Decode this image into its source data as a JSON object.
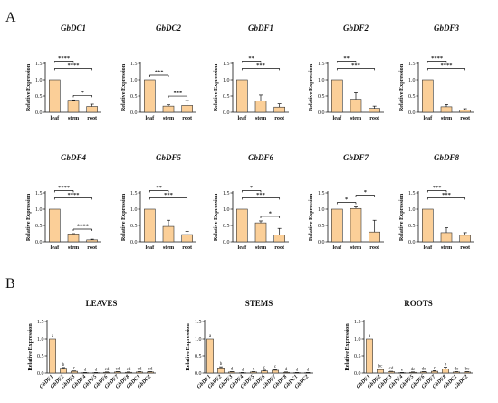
{
  "figure": {
    "panel_A": "A",
    "panel_B": "B"
  },
  "colors": {
    "bar": "#fbcf98",
    "bar_stroke": "#333333",
    "axis": "#111111"
  },
  "chart_data": [
    {
      "type": "bar",
      "title": "GbDC1",
      "ylabel": "Relative Expression",
      "categories": [
        "leaf",
        "stem",
        "root"
      ],
      "values": [
        1.0,
        0.37,
        0.18
      ],
      "errors": [
        0.0,
        0.01,
        0.07
      ],
      "ylim": [
        0,
        1.5
      ],
      "yticks": [
        "0.0",
        "0.5",
        "1.0",
        "1.5"
      ],
      "significance": [
        {
          "from": 0,
          "to": 2,
          "label": "****"
        },
        {
          "from": 0,
          "to": 1,
          "label": "****"
        },
        {
          "from": 1,
          "to": 2,
          "label": "*"
        }
      ]
    },
    {
      "type": "bar",
      "title": "GbDC2",
      "ylabel": "Relative Expression",
      "categories": [
        "leaf",
        "stem",
        "root"
      ],
      "values": [
        1.0,
        0.19,
        0.21
      ],
      "errors": [
        0.0,
        0.04,
        0.15
      ],
      "ylim": [
        0,
        1.5
      ],
      "yticks": [
        "0.0",
        "0.5",
        "1.0",
        "1.5"
      ],
      "significance": [
        {
          "from": 0,
          "to": 1,
          "label": "***"
        },
        {
          "from": 1,
          "to": 2,
          "label": "***"
        }
      ]
    },
    {
      "type": "bar",
      "title": "GbDF1",
      "ylabel": "Relative Expression",
      "categories": [
        "leaf",
        "stem",
        "root"
      ],
      "values": [
        1.0,
        0.35,
        0.16
      ],
      "errors": [
        0.0,
        0.18,
        0.1
      ],
      "ylim": [
        0,
        1.5
      ],
      "yticks": [
        "0.0",
        "0.5",
        "1.0",
        "1.5"
      ],
      "significance": [
        {
          "from": 0,
          "to": 2,
          "label": "***"
        },
        {
          "from": 0,
          "to": 1,
          "label": "**"
        }
      ]
    },
    {
      "type": "bar",
      "title": "GbDF2",
      "ylabel": "Relative Expression",
      "categories": [
        "leaf",
        "stem",
        "root"
      ],
      "values": [
        1.0,
        0.4,
        0.12
      ],
      "errors": [
        0.0,
        0.2,
        0.07
      ],
      "ylim": [
        0,
        1.5
      ],
      "yticks": [
        "0.0",
        "0.5",
        "1.0",
        "1.5"
      ],
      "significance": [
        {
          "from": 0,
          "to": 2,
          "label": "***"
        },
        {
          "from": 0,
          "to": 1,
          "label": "**"
        }
      ]
    },
    {
      "type": "bar",
      "title": "GbDF3",
      "ylabel": "Relative Expression",
      "categories": [
        "leaf",
        "stem",
        "root"
      ],
      "values": [
        1.0,
        0.17,
        0.07
      ],
      "errors": [
        0.0,
        0.07,
        0.04
      ],
      "ylim": [
        0,
        1.5
      ],
      "yticks": [
        "0.0",
        "0.5",
        "1.0",
        "1.5"
      ],
      "significance": [
        {
          "from": 0,
          "to": 2,
          "label": "****"
        },
        {
          "from": 0,
          "to": 1,
          "label": "****"
        }
      ]
    },
    {
      "type": "bar",
      "title": "GbDF4",
      "ylabel": "Relative Expression",
      "categories": [
        "leaf",
        "stem",
        "root"
      ],
      "values": [
        1.0,
        0.24,
        0.06
      ],
      "errors": [
        0.0,
        0.01,
        0.02
      ],
      "ylim": [
        0,
        1.5
      ],
      "yticks": [
        "0.0",
        "0.5",
        "1.0",
        "1.5"
      ],
      "significance": [
        {
          "from": 0,
          "to": 2,
          "label": "****"
        },
        {
          "from": 0,
          "to": 1,
          "label": "****"
        },
        {
          "from": 1,
          "to": 2,
          "label": "****"
        }
      ]
    },
    {
      "type": "bar",
      "title": "GbDF5",
      "ylabel": "Relative Expression",
      "categories": [
        "leaf",
        "stem",
        "root"
      ],
      "values": [
        1.0,
        0.47,
        0.22
      ],
      "errors": [
        0.0,
        0.19,
        0.1
      ],
      "ylim": [
        0,
        1.5
      ],
      "yticks": [
        "0.0",
        "0.5",
        "1.0",
        "1.5"
      ],
      "significance": [
        {
          "from": 0,
          "to": 2,
          "label": "***"
        },
        {
          "from": 0,
          "to": 1,
          "label": "**"
        }
      ]
    },
    {
      "type": "bar",
      "title": "GbDF6",
      "ylabel": "Relative Expression",
      "categories": [
        "leaf",
        "stem",
        "root"
      ],
      "values": [
        1.0,
        0.58,
        0.21
      ],
      "errors": [
        0.0,
        0.06,
        0.2
      ],
      "ylim": [
        0,
        1.5
      ],
      "yticks": [
        "0.0",
        "0.5",
        "1.0",
        "1.5"
      ],
      "significance": [
        {
          "from": 0,
          "to": 2,
          "label": "***"
        },
        {
          "from": 0,
          "to": 1,
          "label": "*"
        },
        {
          "from": 1,
          "to": 2,
          "label": "*"
        }
      ]
    },
    {
      "type": "bar",
      "title": "GbDF7",
      "ylabel": "Relative Expression",
      "categories": [
        "leaf",
        "stem",
        "root"
      ],
      "values": [
        1.0,
        1.02,
        0.3
      ],
      "errors": [
        0.0,
        0.05,
        0.36
      ],
      "ylim": [
        0,
        1.5
      ],
      "yticks": [
        "0.0",
        "0.5",
        "1.0",
        "1.5"
      ],
      "significance": [
        {
          "from": 0,
          "to": 1,
          "label": "*"
        },
        {
          "from": 1,
          "to": 2,
          "label": "*"
        }
      ]
    },
    {
      "type": "bar",
      "title": "GbDF8",
      "ylabel": "Relative Expression",
      "categories": [
        "leaf",
        "stem",
        "root"
      ],
      "values": [
        1.0,
        0.28,
        0.2
      ],
      "errors": [
        0.0,
        0.15,
        0.08
      ],
      "ylim": [
        0,
        1.5
      ],
      "yticks": [
        "0.0",
        "0.5",
        "1.0",
        "1.5"
      ],
      "significance": [
        {
          "from": 0,
          "to": 2,
          "label": "***"
        },
        {
          "from": 0,
          "to": 1,
          "label": "***"
        }
      ]
    },
    {
      "type": "bar",
      "title": "LEAVES",
      "ylabel": "Relative Expression",
      "categories": [
        "GbDF1",
        "GbDF2",
        "GbDF3",
        "GbDF4",
        "GbDF5",
        "GbDF6",
        "GbDF7",
        "GbDF8",
        "GbDC1",
        "GbDC2"
      ],
      "values": [
        1.0,
        0.14,
        0.05,
        0.01,
        0.01,
        0.02,
        0.03,
        0.02,
        0.03,
        0.03
      ],
      "errors": [
        0.0,
        0.02,
        0.01,
        0.005,
        0.005,
        0.01,
        0.01,
        0.01,
        0.01,
        0.01
      ],
      "letters": [
        "a",
        "b",
        "c",
        "d",
        "d",
        "cd",
        "cd",
        "cd",
        "cd",
        "cd"
      ],
      "ylim": [
        0,
        1.5
      ],
      "yticks": [
        "0.0",
        "0.5",
        "1.0",
        "1.5"
      ]
    },
    {
      "type": "bar",
      "title": "STEMS",
      "ylabel": "Relative Expression",
      "categories": [
        "GbDF1",
        "GbDF2",
        "GbDF3",
        "GbDF4",
        "GbDF5",
        "GbDF6",
        "GbDF7",
        "GbDF8",
        "GbDC1",
        "GbDC2"
      ],
      "values": [
        1.0,
        0.15,
        0.03,
        0.01,
        0.03,
        0.06,
        0.08,
        0.02,
        0.01,
        0.01
      ],
      "errors": [
        0.0,
        0.03,
        0.01,
        0.005,
        0.01,
        0.02,
        0.02,
        0.01,
        0.005,
        0.005
      ],
      "letters": [
        "a",
        "b",
        "d",
        "d",
        "d",
        "c",
        "c",
        "d",
        "d",
        "d"
      ],
      "ylim": [
        0,
        1.5
      ],
      "yticks": [
        "0.0",
        "0.5",
        "1.0",
        "1.5"
      ]
    },
    {
      "type": "bar",
      "title": "ROOTS",
      "ylabel": "Relative Expression",
      "categories": [
        "GbDF1",
        "GbDF2",
        "GbDF3",
        "GbDF4",
        "GbDF5",
        "GbDF6",
        "GbDF7",
        "GbDF8",
        "GbDC1",
        "GbDC2"
      ],
      "values": [
        1.0,
        0.1,
        0.04,
        0.01,
        0.02,
        0.03,
        0.05,
        0.12,
        0.03,
        0.03
      ],
      "errors": [
        0.0,
        0.02,
        0.01,
        0.005,
        0.01,
        0.01,
        0.02,
        0.05,
        0.01,
        0.01
      ],
      "letters": [
        "a",
        "bc",
        "cd",
        "e",
        "de",
        "de",
        "c",
        "b",
        "de",
        "bc"
      ],
      "ylim": [
        0,
        1.5
      ],
      "yticks": [
        "0.0",
        "0.5",
        "1.0",
        "1.5"
      ]
    }
  ]
}
